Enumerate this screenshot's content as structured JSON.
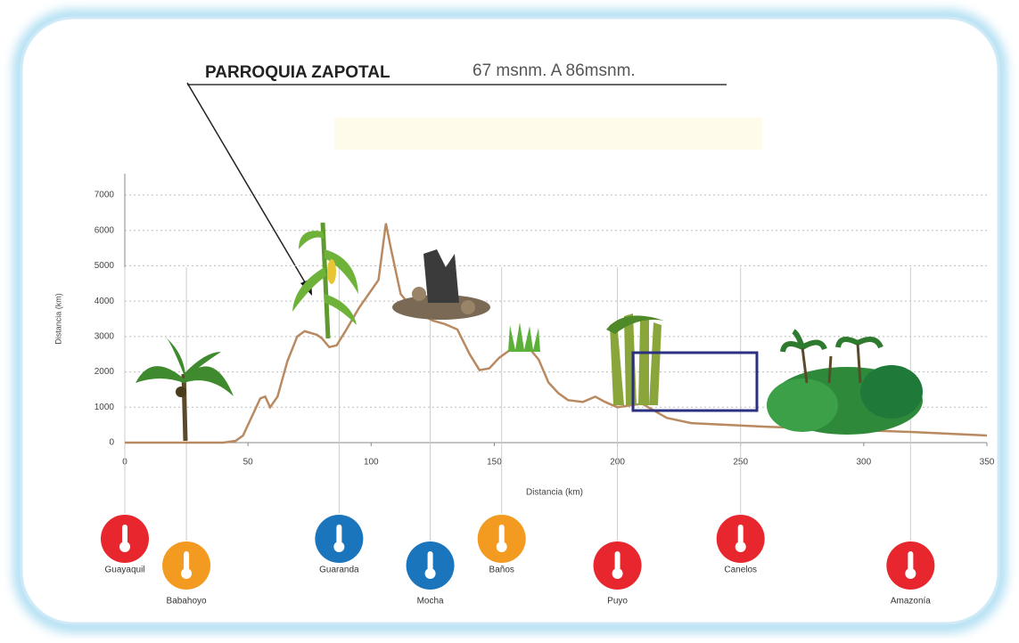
{
  "chart_data": {
    "type": "line",
    "title": "PARROQUIA ZAPOTAL",
    "subtitle": "67 msnm. A 86msnm.",
    "xlabel": "Distancia (km)",
    "ylabel": "Distancia (km)",
    "x": [
      0,
      40,
      45,
      48,
      52,
      55,
      57,
      59,
      62,
      66,
      70,
      73,
      78,
      80,
      83,
      86,
      90,
      95,
      100,
      103,
      106,
      108,
      112,
      118,
      125,
      130,
      135,
      140,
      144,
      148,
      152,
      156,
      165,
      168,
      172,
      176,
      180,
      186,
      191,
      195,
      200,
      210,
      220,
      230,
      260,
      280,
      320,
      350
    ],
    "series": [
      {
        "color": "#b98a62",
        "values": [
          0,
          0,
          50,
          200,
          800,
          1250,
          1300,
          1000,
          1300,
          2300,
          3000,
          3150,
          3050,
          2950,
          2700,
          2750,
          3200,
          3800,
          4300,
          4600,
          6200,
          5500,
          4200,
          3700,
          3450,
          3350,
          3200,
          2500,
          2050,
          2100,
          2400,
          2600,
          2600,
          2350,
          1700,
          1400,
          1200,
          1150,
          1300,
          1150,
          1000,
          1100,
          700,
          550,
          450,
          400,
          300,
          200
        ]
      }
    ],
    "xlim": [
      0,
      350
    ],
    "xticks": [
      0,
      50,
      100,
      150,
      200,
      250,
      300,
      350
    ],
    "ylim": [
      0,
      7000
    ],
    "yticks": [
      0,
      1000,
      2000,
      3000,
      4000,
      5000,
      6000,
      7000
    ],
    "grid": true,
    "locations": [
      {
        "name": "Guayaquil",
        "color": "#e8262e",
        "x": 0
      },
      {
        "name": "Babahoyo",
        "color": "#f39a21",
        "x": 25
      },
      {
        "name": "Guaranda",
        "color": "#1b75bc",
        "x": 87
      },
      {
        "name": "Mocha",
        "color": "#1b75bc",
        "x": 124
      },
      {
        "name": "Baños",
        "color": "#f39a21",
        "x": 153
      },
      {
        "name": "Puyo",
        "color": "#e8262e",
        "x": 200
      },
      {
        "name": "Canelos",
        "color": "#e8262e",
        "x": 250
      },
      {
        "name": "Amazonía",
        "color": "#e8262e",
        "x": 319
      }
    ]
  }
}
